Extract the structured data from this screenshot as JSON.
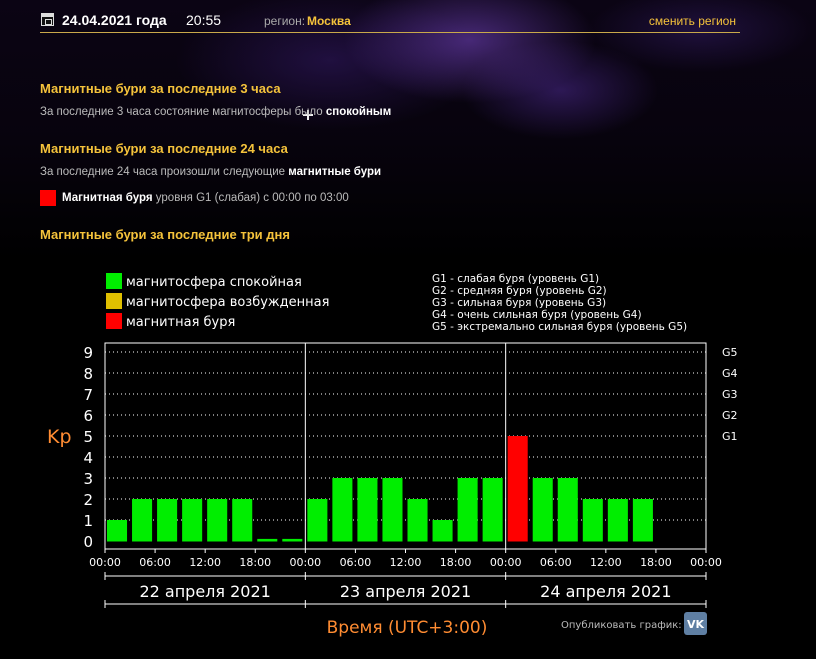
{
  "header": {
    "date": "24.04.2021 года",
    "time": "20:55",
    "region_label": "регион:",
    "region_value": "Москва",
    "change_region": "сменить регион"
  },
  "section_3h": {
    "title": "Магнитные бури за последние 3 часа",
    "text_prefix": "За последние 3 часа состояние магнитосферы было ",
    "text_bold": "спокойным"
  },
  "section_24h": {
    "title": "Магнитные бури за последние 24 часа",
    "text_prefix": "За последние 24 часа произошли следующие ",
    "text_bold": "магнитные бури",
    "event_bold": "Магнитная буря",
    "event_rest": " уровня G1 (слабая) с 00:00 по 03:00"
  },
  "section_3d": {
    "title": "Магнитные бури за последние три дня"
  },
  "legend": [
    {
      "label": "магнитосфера спокойная",
      "color": "#00ee00"
    },
    {
      "label": "магнитосфера возбужденная",
      "color": "#e0c000"
    },
    {
      "label": "магнитная буря",
      "color": "#ff0000"
    }
  ],
  "g_legend": [
    "G1 - слабая буря (уровень G1)",
    "G2 - средняя буря (уровень G2)",
    "G3 - сильная буря (уровень G3)",
    "G4 - очень сильная буря (уровень G4)",
    "G5 - экстремально сильная буря (уровень G5)"
  ],
  "chart_data": {
    "type": "bar",
    "ylabel": "Kp",
    "xlabel": "Время (UTC+3:00)",
    "ylim": [
      0,
      9
    ],
    "y_ticks": [
      "0",
      "1",
      "2",
      "3",
      "4",
      "5",
      "6",
      "7",
      "8",
      "9"
    ],
    "right_ticks": [
      {
        "label": "G1",
        "value": 5
      },
      {
        "label": "G2",
        "value": 6
      },
      {
        "label": "G3",
        "value": 7
      },
      {
        "label": "G4",
        "value": 8
      },
      {
        "label": "G5",
        "value": 9
      }
    ],
    "x_ticks": [
      "00:00",
      "06:00",
      "12:00",
      "18:00",
      "00:00",
      "06:00",
      "12:00",
      "18:00",
      "00:00",
      "06:00",
      "12:00",
      "18:00",
      "00:00"
    ],
    "days": [
      "22 апреля 2021",
      "23 апреля 2021",
      "24 апреля 2021"
    ],
    "colors": {
      "quiet": "#00ee00",
      "storm": "#ff0000"
    },
    "storm_threshold": 5,
    "values": [
      1,
      2,
      2,
      2,
      2,
      2,
      0.1,
      0.1,
      2,
      3,
      3,
      3,
      2,
      1,
      3,
      3,
      5,
      3,
      3,
      2,
      2,
      2
    ],
    "grid": "dotted",
    "legend_position": "top-left"
  },
  "publish": {
    "label": "Опубликовать график:",
    "vk": "VK"
  }
}
